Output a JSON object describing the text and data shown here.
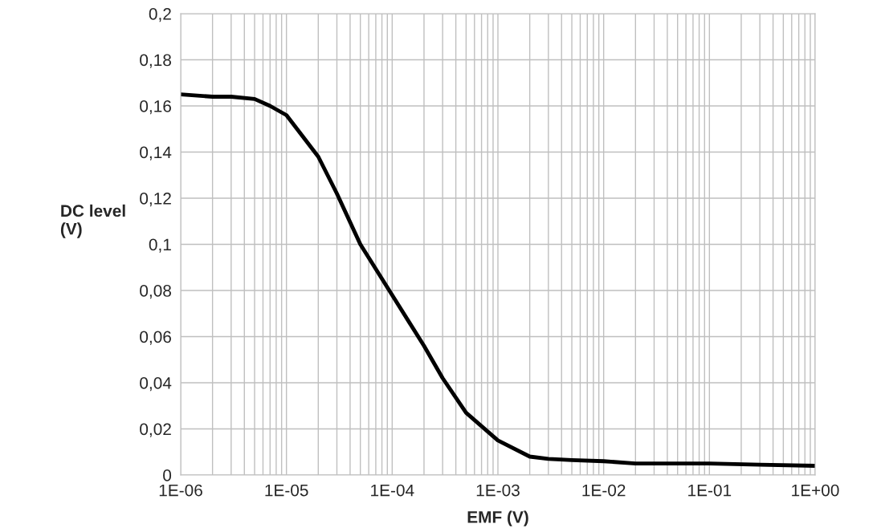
{
  "chart_data": {
    "type": "line",
    "xlabel": "EMF (V)",
    "ylabel": "DC level\n(V)",
    "log": "x",
    "x": [
      1e-06,
      2e-06,
      3e-06,
      5e-06,
      7e-06,
      1e-05,
      2e-05,
      3e-05,
      5e-05,
      0.0001,
      0.0002,
      0.0003,
      0.0005,
      0.001,
      0.002,
      0.003,
      0.005,
      0.01,
      0.02,
      0.05,
      0.1,
      0.3,
      1
    ],
    "series": [
      {
        "color": "#000000",
        "values": [
          0.165,
          0.164,
          0.164,
          0.163,
          0.16,
          0.156,
          0.138,
          0.122,
          0.1,
          0.078,
          0.056,
          0.042,
          0.027,
          0.015,
          0.008,
          0.007,
          0.0065,
          0.006,
          0.005,
          0.005,
          0.005,
          0.0045,
          0.004
        ]
      }
    ],
    "xlim": [
      1e-06,
      1
    ],
    "ylim": [
      0,
      0.2
    ],
    "xticks": [
      {
        "value": 1e-06,
        "label": "1E-06"
      },
      {
        "value": 1e-05,
        "label": "1E-05"
      },
      {
        "value": 0.0001,
        "label": "1E-04"
      },
      {
        "value": 0.001,
        "label": "1E-03"
      },
      {
        "value": 0.01,
        "label": "1E-02"
      },
      {
        "value": 0.1,
        "label": "1E-01"
      },
      {
        "value": 1,
        "label": "1E+00"
      }
    ],
    "yticks": [
      {
        "value": 0,
        "label": "0"
      },
      {
        "value": 0.02,
        "label": "0,02"
      },
      {
        "value": 0.04,
        "label": "0,04"
      },
      {
        "value": 0.06,
        "label": "0,06"
      },
      {
        "value": 0.08,
        "label": "0,08"
      },
      {
        "value": 0.1,
        "label": "0,1"
      },
      {
        "value": 0.12,
        "label": "0,12"
      },
      {
        "value": 0.14,
        "label": "0,14"
      },
      {
        "value": 0.16,
        "label": "0,16"
      },
      {
        "value": 0.18,
        "label": "0,18"
      },
      {
        "value": 0.2,
        "label": "0,2"
      }
    ],
    "grid": true,
    "legend": false,
    "line_style": "solid",
    "marker": "none"
  }
}
